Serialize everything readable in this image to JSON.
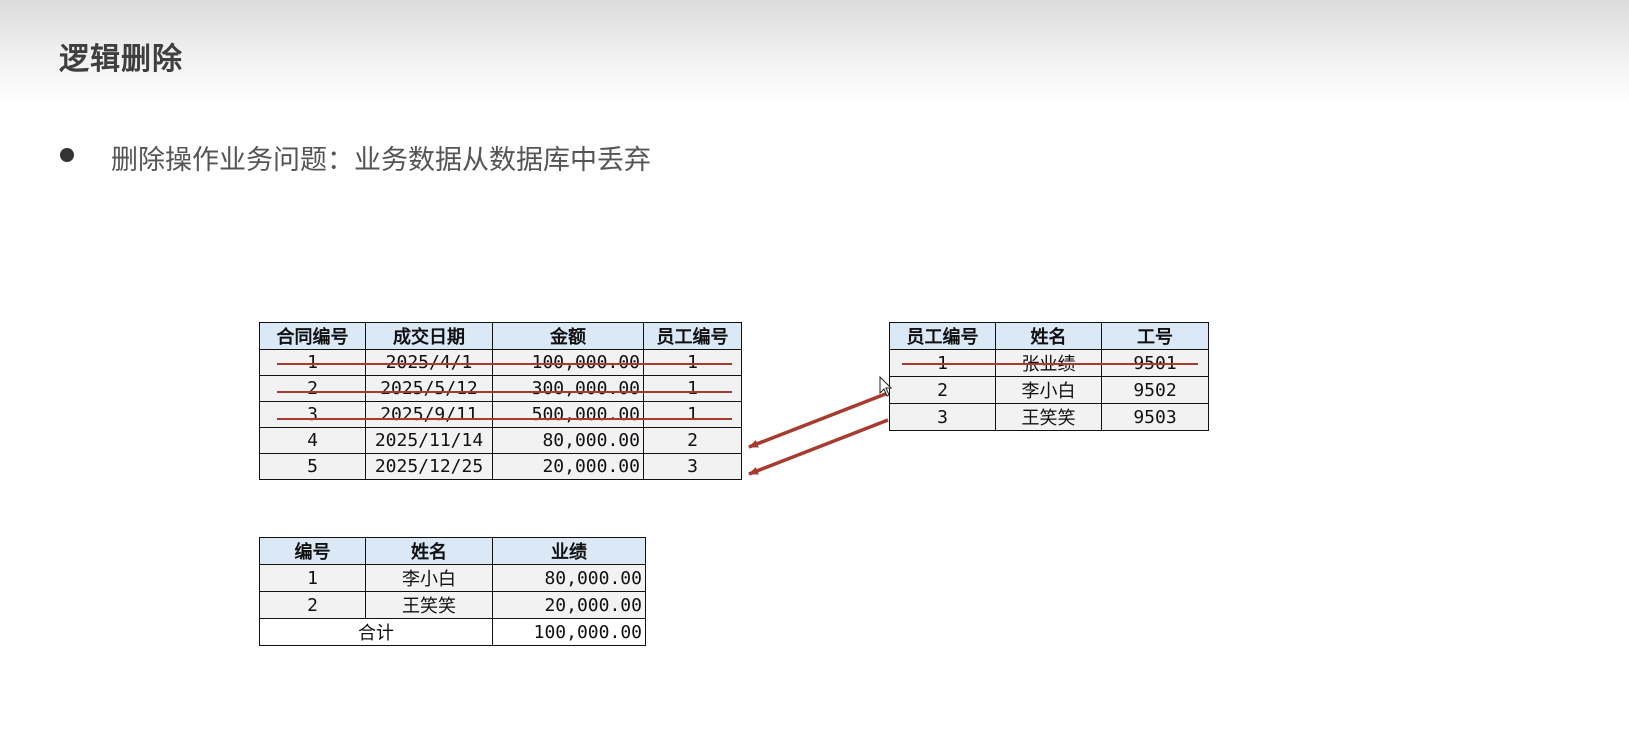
{
  "title": "逻辑删除",
  "bullet": "删除操作业务问题：业务数据从数据库中丢弃",
  "contracts": {
    "headers": [
      "合同编号",
      "成交日期",
      "金额",
      "员工编号"
    ],
    "rows": [
      {
        "c": [
          "1",
          "2025/4/1",
          "100,000.00",
          "1"
        ],
        "deleted": true
      },
      {
        "c": [
          "2",
          "2025/5/12",
          "300,000.00",
          "1"
        ],
        "deleted": true
      },
      {
        "c": [
          "3",
          "2025/9/11",
          "500,000.00",
          "1"
        ],
        "deleted": true
      },
      {
        "c": [
          "4",
          "2025/11/14",
          "80,000.00",
          "2"
        ],
        "deleted": false
      },
      {
        "c": [
          "5",
          "2025/12/25",
          "20,000.00",
          "3"
        ],
        "deleted": false
      }
    ]
  },
  "employees": {
    "headers": [
      "员工编号",
      "姓名",
      "工号"
    ],
    "rows": [
      {
        "c": [
          "1",
          "张业绩",
          "9501"
        ],
        "deleted": true
      },
      {
        "c": [
          "2",
          "李小白",
          "9502"
        ],
        "deleted": false
      },
      {
        "c": [
          "3",
          "王笑笑",
          "9503"
        ],
        "deleted": false
      }
    ]
  },
  "summary": {
    "headers": [
      "编号",
      "姓名",
      "业绩"
    ],
    "rows": [
      [
        "1",
        "李小白",
        "80,000.00"
      ],
      [
        "2",
        "王笑笑",
        "20,000.00"
      ]
    ],
    "total_label": "合计",
    "total_value": "100,000.00"
  },
  "colors": {
    "strike": "#a83a2e",
    "header_bg": "#dbe9f6",
    "cell_bg": "#f2f2f2"
  }
}
